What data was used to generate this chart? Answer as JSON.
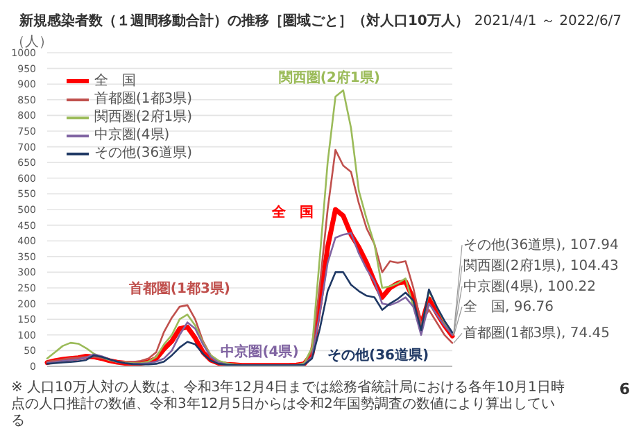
{
  "chart_data": {
    "type": "line",
    "title": "新規感染者数（１週間移動合計）の推移［圏域ごと］（対人口10万人）",
    "subtitle": "2021/4/1 ～ 2022/6/7",
    "ylabel": "（人）",
    "categories": [
      null,
      null,
      null,
      null,
      null,
      null,
      null,
      null,
      null,
      null,
      null,
      null,
      null,
      null,
      null,
      null,
      null,
      null,
      null,
      null,
      null,
      null,
      null,
      null,
      null,
      null,
      null,
      null,
      null,
      null,
      null,
      null,
      null,
      null,
      null,
      null,
      null,
      null,
      null,
      null,
      null,
      null,
      null,
      null,
      null,
      null,
      null,
      null,
      null,
      null,
      null,
      null,
      null
    ],
    "series": [
      {
        "name": "全　国",
        "color": "#ff0000",
        "values": [
          12,
          18,
          22,
          25,
          27,
          32,
          30,
          25,
          18,
          13,
          10,
          9,
          10,
          14,
          25,
          55,
          80,
          120,
          125,
          90,
          45,
          20,
          10,
          6,
          5,
          3,
          3,
          3,
          3,
          3,
          3,
          3,
          4,
          8,
          40,
          200,
          380,
          500,
          480,
          420,
          380,
          330,
          270,
          220,
          250,
          265,
          270,
          215,
          130,
          215,
          170,
          130,
          96.76
        ],
        "value_labels": [
          null,
          null,
          null,
          null,
          null,
          null,
          null,
          null,
          null,
          null,
          null,
          null,
          null,
          null,
          null,
          null,
          null,
          null,
          null,
          null,
          null,
          null,
          null,
          null,
          null,
          null,
          null,
          null,
          null,
          null,
          null,
          null,
          null,
          null,
          null,
          null,
          null,
          null,
          null,
          null,
          null,
          null,
          null,
          null,
          null,
          null,
          null,
          null,
          null,
          null,
          null,
          null,
          "全　国, 96.76"
        ]
      },
      {
        "name": "首都圏(1都3県)",
        "color": "#c0504d",
        "values": [
          15,
          18,
          22,
          26,
          28,
          30,
          30,
          26,
          20,
          15,
          13,
          14,
          17,
          25,
          45,
          110,
          155,
          190,
          195,
          150,
          80,
          35,
          15,
          8,
          5,
          3,
          3,
          3,
          3,
          3,
          3,
          3,
          4,
          10,
          50,
          260,
          500,
          690,
          640,
          620,
          520,
          440,
          390,
          300,
          335,
          330,
          335,
          250,
          135,
          180,
          140,
          100,
          74.45
        ],
        "value_labels": [
          null,
          null,
          null,
          null,
          null,
          null,
          null,
          null,
          null,
          null,
          null,
          null,
          null,
          null,
          null,
          null,
          null,
          null,
          null,
          null,
          null,
          null,
          null,
          null,
          null,
          null,
          null,
          null,
          null,
          null,
          null,
          null,
          null,
          null,
          null,
          null,
          null,
          null,
          null,
          null,
          null,
          null,
          null,
          null,
          null,
          null,
          null,
          null,
          null,
          null,
          null,
          null,
          "首都圏(1都3県), 74.45"
        ]
      },
      {
        "name": "関西圏(2府1県)",
        "color": "#9bbb59",
        "values": [
          25,
          45,
          65,
          75,
          72,
          58,
          40,
          30,
          20,
          14,
          12,
          10,
          10,
          15,
          30,
          70,
          100,
          150,
          165,
          130,
          75,
          35,
          18,
          10,
          6,
          4,
          3,
          3,
          3,
          3,
          3,
          3,
          4,
          10,
          60,
          350,
          650,
          860,
          880,
          760,
          560,
          470,
          390,
          250,
          255,
          265,
          280,
          190,
          115,
          240,
          190,
          140,
          104.43
        ],
        "value_labels": [
          null,
          null,
          null,
          null,
          null,
          null,
          null,
          null,
          null,
          null,
          null,
          null,
          null,
          null,
          null,
          null,
          null,
          null,
          null,
          null,
          null,
          null,
          null,
          null,
          null,
          null,
          null,
          null,
          null,
          null,
          null,
          null,
          null,
          null,
          null,
          null,
          null,
          null,
          null,
          null,
          null,
          null,
          null,
          null,
          null,
          null,
          null,
          null,
          null,
          null,
          null,
          null,
          "関西圏(2府1県), 104.43"
        ]
      },
      {
        "name": "中京圏(4県)",
        "color": "#8064a2",
        "values": [
          10,
          13,
          17,
          20,
          22,
          28,
          38,
          32,
          22,
          14,
          10,
          8,
          8,
          10,
          15,
          25,
          50,
          100,
          140,
          120,
          70,
          30,
          12,
          6,
          4,
          3,
          3,
          3,
          3,
          3,
          3,
          3,
          3,
          6,
          30,
          170,
          330,
          410,
          420,
          425,
          360,
          310,
          270,
          200,
          195,
          205,
          220,
          190,
          100,
          200,
          165,
          130,
          100.22
        ],
        "value_labels": [
          null,
          null,
          null,
          null,
          null,
          null,
          null,
          null,
          null,
          null,
          null,
          null,
          null,
          null,
          null,
          null,
          null,
          null,
          null,
          null,
          null,
          null,
          null,
          null,
          null,
          null,
          null,
          null,
          null,
          null,
          null,
          null,
          null,
          null,
          null,
          null,
          null,
          null,
          null,
          null,
          null,
          null,
          null,
          null,
          null,
          null,
          null,
          null,
          null,
          null,
          null,
          null,
          "中京圏(4県), 100.22"
        ]
      },
      {
        "name": "その他(36道県)",
        "color": "#1f3864",
        "values": [
          8,
          10,
          12,
          14,
          16,
          20,
          35,
          30,
          22,
          15,
          10,
          7,
          6,
          6,
          8,
          15,
          35,
          60,
          78,
          70,
          40,
          18,
          8,
          5,
          4,
          3,
          3,
          3,
          3,
          3,
          3,
          3,
          3,
          5,
          25,
          120,
          240,
          300,
          300,
          260,
          240,
          225,
          220,
          180,
          200,
          215,
          235,
          210,
          115,
          245,
          190,
          145,
          107.94
        ],
        "value_labels": [
          null,
          null,
          null,
          null,
          null,
          null,
          null,
          null,
          null,
          null,
          null,
          null,
          null,
          null,
          null,
          null,
          null,
          null,
          null,
          null,
          null,
          null,
          null,
          null,
          null,
          null,
          null,
          null,
          null,
          null,
          null,
          null,
          null,
          null,
          null,
          null,
          null,
          null,
          null,
          null,
          null,
          null,
          null,
          null,
          null,
          null,
          null,
          null,
          null,
          null,
          null,
          null,
          "その他(36道県), 107.94"
        ]
      }
    ],
    "ylim": [
      0,
      1000
    ],
    "yticks": [
      0,
      50,
      100,
      150,
      200,
      250,
      300,
      350,
      400,
      450,
      500,
      550,
      600,
      650,
      700,
      750,
      800,
      850,
      900,
      950,
      1000
    ],
    "grid": "y",
    "legend": "top left",
    "annotations": [
      "※ 人口10万人対の人数は、令和3年12月4日までは総務省統計局における各年10月1日時点の人口推計の数値、令和3年12月5日からは令和2年国勢調査の数値により算出している",
      "6"
    ]
  }
}
